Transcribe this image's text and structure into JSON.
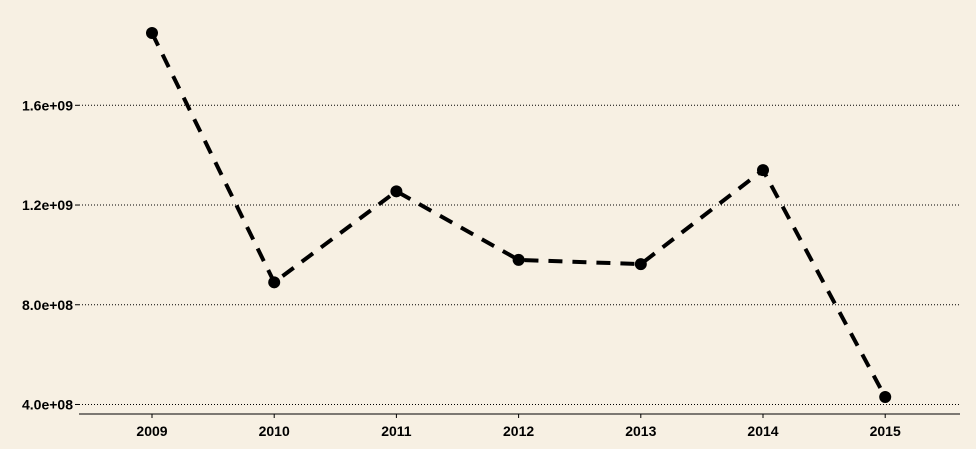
{
  "chart_data": {
    "type": "line",
    "title": "",
    "xlabel": "",
    "ylabel": "",
    "x": [
      "2009",
      "2010",
      "2011",
      "2012",
      "2013",
      "2014",
      "2015"
    ],
    "series": [
      {
        "values": [
          1890000000,
          890000000,
          1255000000,
          980000000,
          963000000,
          1340000000,
          430000000
        ]
      }
    ],
    "y_ticks": [
      400000000,
      800000000,
      1200000000,
      1600000000
    ],
    "y_tick_labels": [
      "4.0e+08",
      "8.0e+08",
      "1.2e+09",
      "1.6e+09"
    ],
    "ylim": [
      360000000,
      1930000000
    ],
    "grid": "horizontal-dotted",
    "legend": "none",
    "line_style": "dashed",
    "marker": "filled-circle",
    "colors": {
      "background": "#f7f0e3",
      "series": "#000000",
      "axis": "#000000"
    }
  }
}
